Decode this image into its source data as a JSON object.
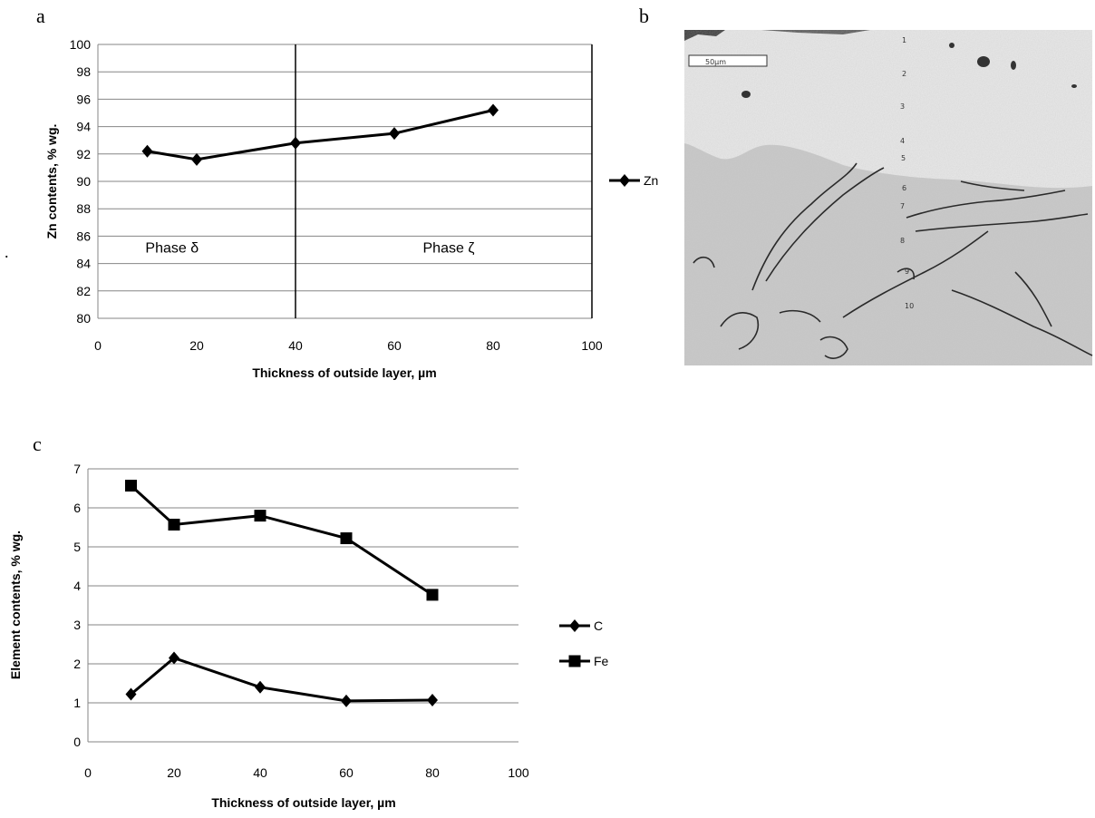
{
  "figure": {
    "stray_mark": "."
  },
  "chart_data": [
    {
      "panel": "a",
      "type": "line",
      "title": "",
      "xlabel": "Thickness of outside layer, µm",
      "ylabel": "Zn contents, % wg.",
      "xlim": [
        0,
        100
      ],
      "ylim": [
        80,
        100
      ],
      "x_ticks": [
        0,
        20,
        40,
        60,
        80,
        100
      ],
      "y_ticks": [
        80,
        82,
        84,
        86,
        88,
        90,
        92,
        94,
        96,
        98,
        100
      ],
      "grid": "horizontal",
      "legend": "right",
      "vertical_lines": [
        40,
        100
      ],
      "annotations": [
        {
          "text": "Phase δ",
          "x": 15,
          "y": 84.8
        },
        {
          "text": "Phase ζ",
          "x": 71,
          "y": 84.8
        }
      ],
      "series": [
        {
          "name": "Zn",
          "marker": "diamond",
          "x": [
            10,
            20,
            40,
            60,
            80
          ],
          "values": [
            92.2,
            91.6,
            92.8,
            93.5,
            95.2
          ]
        }
      ]
    },
    {
      "panel": "c",
      "type": "line",
      "title": "",
      "xlabel": "Thickness of outside layer, µm",
      "ylabel": "Element contents, % wg.",
      "xlim": [
        0,
        100
      ],
      "ylim": [
        0,
        7
      ],
      "x_ticks": [
        0,
        20,
        40,
        60,
        80,
        100
      ],
      "y_ticks": [
        0,
        1,
        2,
        3,
        4,
        5,
        6,
        7
      ],
      "grid": "horizontal",
      "legend": "right",
      "series": [
        {
          "name": "C",
          "marker": "diamond",
          "x": [
            10,
            20,
            40,
            60,
            80
          ],
          "values": [
            1.22,
            2.15,
            1.4,
            1.05,
            1.07
          ]
        },
        {
          "name": "Fe",
          "marker": "square",
          "x": [
            10,
            20,
            40,
            60,
            80
          ],
          "values": [
            6.57,
            5.57,
            5.8,
            5.22,
            3.77
          ]
        }
      ]
    }
  ],
  "micrograph": {
    "panel": "b",
    "scale_bar_label": "50µm",
    "point_labels": [
      "1",
      "2",
      "3",
      "4",
      "5",
      "6",
      "7",
      "8",
      "9",
      "10"
    ]
  }
}
